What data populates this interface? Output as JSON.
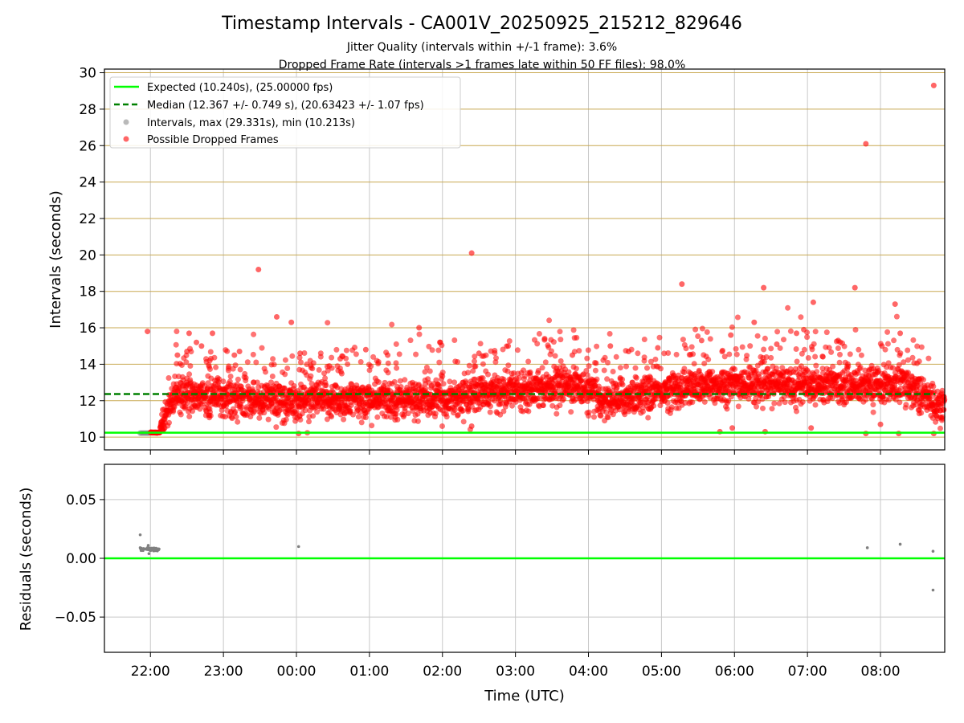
{
  "colors": {
    "expected": "#00ff00",
    "median": "#008000",
    "intervals": "#808080",
    "dropped": "#ff0000",
    "hgrid": "#c8a850",
    "vgrid": "#c8c8c8"
  },
  "chart_data": [
    {
      "type": "scatter",
      "title": "Timestamp Intervals - CA001V_20250925_215212_829646",
      "subtitles": [
        "Jitter Quality (intervals within +/-1 frame): 3.6%",
        "Dropped Frame Rate (intervals >1 frames late within 50 FF files): 98.0%"
      ],
      "xlabel": "",
      "ylabel": "Intervals (seconds)",
      "xlim_hours_since_midnight": [
        -2.63,
        8.88
      ],
      "ylim": [
        9.3,
        30.2
      ],
      "yticks": [
        10,
        12,
        14,
        16,
        18,
        20,
        22,
        24,
        26,
        28,
        30
      ],
      "xticks": [
        -2,
        -1,
        0,
        1,
        2,
        3,
        4,
        5,
        6,
        7,
        8
      ],
      "xtick_labels": [
        "22:00",
        "23:00",
        "00:00",
        "01:00",
        "02:00",
        "03:00",
        "04:00",
        "05:00",
        "06:00",
        "07:00",
        "08:00"
      ],
      "grid": true,
      "legend_position": "top-left",
      "expected_interval": 10.24,
      "median_interval": 12.367,
      "median_range_hours": [
        -2.63,
        8.75
      ],
      "legend": [
        "Expected (10.240s), (25.00000 fps)",
        "Median (12.367 +/- 0.749 s), (20.63423 +/- 1.07 fps)",
        "Intervals, max (29.331s), min (10.213s)",
        "Possible Dropped Frames"
      ],
      "series": [
        {
          "name": "Intervals",
          "points": [
            [
              -2.14,
              10.22
            ],
            [
              -2.12,
              10.22
            ],
            [
              -2.1,
              10.22
            ],
            [
              -2.08,
              10.22
            ],
            [
              -2.06,
              10.22
            ],
            [
              -2.04,
              10.22
            ],
            [
              -2.02,
              10.22
            ]
          ]
        },
        {
          "name": "Possible Dropped Frames",
          "note": "Dense band follows the piecewise-linear trend with about 0.5 s scatter",
          "trend": [
            [
              -2.0,
              10.25
            ],
            [
              -1.87,
              10.25
            ],
            [
              -1.75,
              11.8
            ],
            [
              -1.6,
              12.3
            ],
            [
              0.0,
              12.0
            ],
            [
              2.0,
              12.1
            ],
            [
              3.3,
              12.8
            ],
            [
              3.8,
              12.9
            ],
            [
              4.2,
              12.0
            ],
            [
              5.3,
              12.7
            ],
            [
              6.0,
              12.9
            ],
            [
              8.35,
              12.9
            ],
            [
              8.88,
              11.5
            ]
          ],
          "outliers": [
            [
              -2.04,
              15.8
            ],
            [
              -1.63,
              14.5
            ],
            [
              -1.5,
              14.7
            ],
            [
              -1.47,
              15.7
            ],
            [
              -1.37,
              15.2
            ],
            [
              -1.3,
              15.0
            ],
            [
              -1.15,
              15.7
            ],
            [
              -0.85,
              14.5
            ],
            [
              -0.78,
              14.7
            ],
            [
              -0.52,
              19.2
            ],
            [
              -0.27,
              16.6
            ],
            [
              -0.07,
              16.3
            ],
            [
              0.05,
              14.6
            ],
            [
              0.45,
              13.9
            ],
            [
              0.6,
              14.3
            ],
            [
              0.95,
              14.8
            ],
            [
              1.25,
              14.5
            ],
            [
              1.68,
              16.0
            ],
            [
              1.97,
              15.2
            ],
            [
              2.4,
              20.1
            ],
            [
              2.5,
              14.6
            ],
            [
              2.9,
              15.0
            ],
            [
              3.4,
              15.4
            ],
            [
              3.78,
              14.5
            ],
            [
              4.3,
              15.0
            ],
            [
              4.55,
              14.7
            ],
            [
              4.95,
              14.9
            ],
            [
              5.28,
              18.4
            ],
            [
              5.55,
              15.3
            ],
            [
              5.95,
              15.6
            ],
            [
              6.27,
              16.3
            ],
            [
              6.4,
              18.2
            ],
            [
              6.58,
              15.1
            ],
            [
              6.85,
              15.7
            ],
            [
              6.95,
              15.9
            ],
            [
              7.08,
              17.4
            ],
            [
              7.42,
              15.3
            ],
            [
              7.65,
              18.2
            ],
            [
              7.8,
              26.1
            ],
            [
              8.02,
              15.0
            ],
            [
              8.2,
              17.3
            ],
            [
              8.27,
              15.7
            ],
            [
              8.73,
              29.3
            ],
            [
              8.0,
              10.7
            ],
            [
              8.25,
              10.2
            ],
            [
              7.8,
              10.2
            ],
            [
              6.42,
              10.3
            ],
            [
              5.8,
              10.3
            ],
            [
              8.73,
              10.2
            ],
            [
              0.03,
              10.2
            ],
            [
              2.4,
              10.6
            ],
            [
              7.05,
              10.5
            ],
            [
              5.97,
              10.5
            ]
          ]
        }
      ]
    },
    {
      "type": "scatter",
      "title": "",
      "xlabel": "Time (UTC)",
      "ylabel": "Residuals (seconds)",
      "xlim_hours_since_midnight": [
        -2.63,
        8.88
      ],
      "ylim": [
        -0.08,
        0.08
      ],
      "yticks": [
        0.05,
        0.0,
        -0.05
      ],
      "ytick_labels": [
        "0.05",
        "0.00",
        "−0.05"
      ],
      "xticks": [
        -2,
        -1,
        0,
        1,
        2,
        3,
        4,
        5,
        6,
        7,
        8
      ],
      "xtick_labels": [
        "22:00",
        "23:00",
        "00:00",
        "01:00",
        "02:00",
        "03:00",
        "04:00",
        "05:00",
        "06:00",
        "07:00",
        "08:00"
      ],
      "grid": true,
      "reference_line": 0.0,
      "series": [
        {
          "name": "Residuals",
          "points": [
            [
              -2.14,
              0.02
            ],
            [
              -2.14,
              0.009
            ],
            [
              -2.12,
              0.008
            ],
            [
              -2.1,
              0.008
            ],
            [
              -2.08,
              0.008
            ],
            [
              -2.06,
              0.008
            ],
            [
              -2.04,
              0.009
            ],
            [
              -2.03,
              0.011
            ],
            [
              -2.02,
              0.004
            ],
            [
              -2.01,
              0.008
            ],
            [
              -2.0,
              0.007
            ],
            [
              -1.98,
              0.008
            ],
            [
              -1.96,
              0.008
            ],
            [
              -1.94,
              0.007
            ],
            [
              -1.92,
              0.008
            ],
            [
              -1.9,
              0.007
            ],
            [
              0.03,
              0.01
            ],
            [
              7.82,
              0.009
            ],
            [
              8.27,
              0.012
            ],
            [
              8.72,
              0.006
            ],
            [
              8.72,
              -0.027
            ]
          ]
        }
      ]
    }
  ]
}
